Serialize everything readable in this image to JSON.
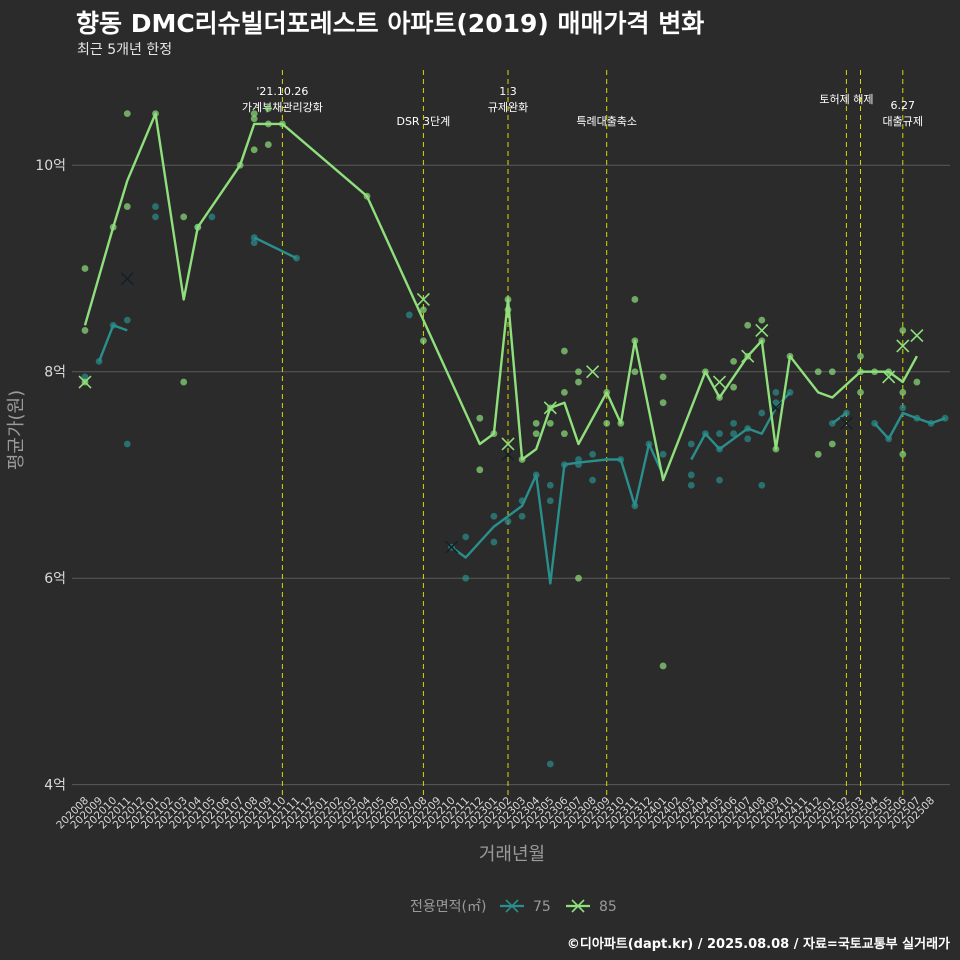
{
  "title": "향동 DMC리슈빌더포레스트 아파트(2019) 매매가격 변화",
  "subtitle": "최근 5개년 한정",
  "caption": "©디아파트(dapt.kr) / 2025.08.08 / 자료=국토교통부 실거래가",
  "colors": {
    "background": "#2b2b2b",
    "s75": "#2a8f8c",
    "s85": "#8fe07c",
    "event_line": "#d8d800",
    "grid": "#5a5a5a"
  },
  "chart_data": {
    "type": "line",
    "xlabel": "거래년월",
    "ylabel": "평균가(원)",
    "ylim": [
      3.9,
      11.0
    ],
    "y_ticks": [
      {
        "v": 4,
        "label": "4억"
      },
      {
        "v": 6,
        "label": "6억"
      },
      {
        "v": 8,
        "label": "8억"
      },
      {
        "v": 10,
        "label": "10억"
      }
    ],
    "categories": [
      "202008",
      "202009",
      "202010",
      "202011",
      "202012",
      "202101",
      "202102",
      "202103",
      "202104",
      "202105",
      "202106",
      "202107",
      "202108",
      "202109",
      "202110",
      "202111",
      "202112",
      "202201",
      "202202",
      "202203",
      "202204",
      "202205",
      "202206",
      "202207",
      "202208",
      "202209",
      "202210",
      "202211",
      "202212",
      "202301",
      "202302",
      "202303",
      "202304",
      "202305",
      "202306",
      "202307",
      "202308",
      "202309",
      "202310",
      "202311",
      "202312",
      "202401",
      "202402",
      "202403",
      "202404",
      "202405",
      "202406",
      "202407",
      "202408",
      "202409",
      "202410",
      "202411",
      "202412",
      "202501",
      "202502",
      "202503",
      "202504",
      "202505",
      "202506",
      "202507",
      "202508"
    ],
    "legend": {
      "title": "전용면적(㎡)",
      "entries": [
        "75",
        "85"
      ]
    },
    "events": [
      {
        "x": 14.0,
        "lines": [
          "'21.10.26",
          "가계부채관리강화"
        ],
        "row": 0
      },
      {
        "x": 24.0,
        "lines": [
          "DSR 3단계"
        ],
        "row": 1
      },
      {
        "x": 30.0,
        "lines": [
          "1.3",
          "규제완화"
        ],
        "row": 0
      },
      {
        "x": 37.0,
        "lines": [
          "특례대출축소"
        ],
        "row": 1
      },
      {
        "x": 54.0,
        "lines": [
          "토허제 해제"
        ],
        "row": 0
      },
      {
        "x": 55.0,
        "lines": [],
        "row": 0
      },
      {
        "x": 58.0,
        "lines": [
          "6.27",
          "대출규제"
        ],
        "row": 1
      }
    ],
    "series": [
      {
        "name": "75",
        "color": "#2a8f8c",
        "line_segments": [
          [
            [
              1,
              8.1
            ],
            [
              2,
              8.45
            ],
            [
              3,
              8.4
            ]
          ],
          [
            [
              12,
              9.3
            ],
            [
              15,
              9.1
            ]
          ],
          [
            [
              26,
              6.3
            ],
            [
              27,
              6.2
            ],
            [
              29,
              6.5
            ],
            [
              30,
              6.6
            ],
            [
              31,
              6.7
            ],
            [
              32,
              7.0
            ],
            [
              33,
              5.95
            ],
            [
              34,
              7.1
            ],
            [
              35,
              7.12
            ],
            [
              37,
              7.15
            ],
            [
              38,
              7.15
            ],
            [
              39,
              6.7
            ],
            [
              40,
              7.3
            ],
            [
              41,
              7.0
            ]
          ],
          [
            [
              43,
              7.15
            ],
            [
              44,
              7.4
            ],
            [
              45,
              7.25
            ],
            [
              46,
              7.35
            ],
            [
              47,
              7.45
            ],
            [
              48,
              7.4
            ],
            [
              49,
              7.65
            ],
            [
              50,
              7.8
            ]
          ],
          [
            [
              53,
              7.5
            ],
            [
              54,
              7.6
            ]
          ],
          [
            [
              56,
              7.5
            ],
            [
              57,
              7.35
            ],
            [
              58,
              7.6
            ],
            [
              59,
              7.55
            ],
            [
              60,
              7.5
            ],
            [
              61,
              7.55
            ]
          ]
        ],
        "points": [
          [
            0,
            7.95
          ],
          [
            1,
            8.1
          ],
          [
            2,
            8.45
          ],
          [
            3,
            8.5
          ],
          [
            3,
            7.3
          ],
          [
            5,
            9.6
          ],
          [
            5,
            9.5
          ],
          [
            8,
            9.4
          ],
          [
            9,
            9.5
          ],
          [
            12,
            9.25
          ],
          [
            12,
            9.3
          ],
          [
            15,
            9.1
          ],
          [
            23,
            8.55
          ],
          [
            26,
            6.3
          ],
          [
            27,
            6.4
          ],
          [
            27,
            6.0
          ],
          [
            29,
            6.6
          ],
          [
            29,
            6.35
          ],
          [
            30,
            6.55
          ],
          [
            31,
            6.6
          ],
          [
            31,
            6.75
          ],
          [
            32,
            7.0
          ],
          [
            33,
            6.9
          ],
          [
            33,
            6.75
          ],
          [
            33,
            4.2
          ],
          [
            34,
            7.1
          ],
          [
            35,
            7.15
          ],
          [
            35,
            7.1
          ],
          [
            36,
            6.95
          ],
          [
            36,
            7.2
          ],
          [
            38,
            7.15
          ],
          [
            39,
            6.7
          ],
          [
            40,
            7.3
          ],
          [
            41,
            7.2
          ],
          [
            43,
            6.9
          ],
          [
            43,
            7.0
          ],
          [
            43,
            7.3
          ],
          [
            44,
            7.4
          ],
          [
            45,
            6.95
          ],
          [
            45,
            7.25
          ],
          [
            45,
            7.4
          ],
          [
            46,
            7.5
          ],
          [
            46,
            7.4
          ],
          [
            47,
            7.35
          ],
          [
            47,
            7.45
          ],
          [
            48,
            6.9
          ],
          [
            48,
            7.6
          ],
          [
            49,
            7.8
          ],
          [
            49,
            7.7
          ],
          [
            50,
            7.8
          ],
          [
            53,
            7.5
          ],
          [
            54,
            7.6
          ],
          [
            56,
            7.5
          ],
          [
            57,
            7.35
          ],
          [
            58,
            7.65
          ],
          [
            59,
            7.55
          ],
          [
            60,
            7.5
          ],
          [
            61,
            7.55
          ]
        ],
        "x_markers": [
          [
            3,
            8.9
          ],
          [
            26,
            6.3
          ],
          [
            30,
            7.2
          ],
          [
            49,
            7.65
          ],
          [
            54,
            7.5
          ]
        ]
      },
      {
        "name": "85",
        "color": "#8fe07c",
        "line_segments": [
          [
            [
              0,
              8.45
            ],
            [
              2,
              9.4
            ],
            [
              3,
              9.85
            ],
            [
              5,
              10.5
            ],
            [
              7,
              8.7
            ],
            [
              8,
              9.4
            ],
            [
              11,
              10.0
            ],
            [
              12,
              10.4
            ],
            [
              14,
              10.4
            ],
            [
              20,
              9.7
            ],
            [
              24,
              8.5
            ],
            [
              28,
              7.3
            ],
            [
              29,
              7.4
            ],
            [
              30,
              8.7
            ],
            [
              31,
              7.15
            ],
            [
              32,
              7.25
            ],
            [
              33,
              7.65
            ],
            [
              34,
              7.7
            ],
            [
              35,
              7.3
            ],
            [
              37,
              7.8
            ],
            [
              38,
              7.5
            ],
            [
              39,
              8.3
            ],
            [
              41,
              6.95
            ],
            [
              44,
              8.0
            ],
            [
              45,
              7.75
            ],
            [
              46,
              7.95
            ],
            [
              47,
              8.15
            ],
            [
              48,
              8.3
            ],
            [
              49,
              7.25
            ],
            [
              50,
              8.15
            ],
            [
              52,
              7.8
            ],
            [
              53,
              7.75
            ],
            [
              55,
              8.0
            ],
            [
              57,
              8.0
            ],
            [
              58,
              7.9
            ],
            [
              59,
              8.15
            ]
          ]
        ],
        "points": [
          [
            0,
            9.0
          ],
          [
            0,
            8.4
          ],
          [
            0,
            7.9
          ],
          [
            2,
            9.4
          ],
          [
            3,
            9.6
          ],
          [
            3,
            10.5
          ],
          [
            5,
            10.5
          ],
          [
            7,
            9.5
          ],
          [
            7,
            7.9
          ],
          [
            8,
            9.4
          ],
          [
            11,
            10.0
          ],
          [
            12,
            10.5
          ],
          [
            12,
            10.45
          ],
          [
            12,
            10.15
          ],
          [
            13,
            10.55
          ],
          [
            13,
            10.4
          ],
          [
            13,
            10.2
          ],
          [
            14,
            10.4
          ],
          [
            20,
            9.7
          ],
          [
            24,
            8.6
          ],
          [
            24,
            8.3
          ],
          [
            28,
            7.55
          ],
          [
            28,
            7.05
          ],
          [
            29,
            7.4
          ],
          [
            30,
            8.7
          ],
          [
            30,
            8.6
          ],
          [
            31,
            7.15
          ],
          [
            32,
            7.5
          ],
          [
            32,
            7.4
          ],
          [
            33,
            7.65
          ],
          [
            33,
            7.5
          ],
          [
            34,
            8.2
          ],
          [
            34,
            7.8
          ],
          [
            34,
            7.4
          ],
          [
            35,
            8.0
          ],
          [
            35,
            7.9
          ],
          [
            35,
            6.0
          ],
          [
            37,
            7.8
          ],
          [
            37,
            7.5
          ],
          [
            38,
            7.5
          ],
          [
            39,
            8.7
          ],
          [
            39,
            8.3
          ],
          [
            39,
            8.0
          ],
          [
            41,
            7.95
          ],
          [
            41,
            7.7
          ],
          [
            41,
            5.15
          ],
          [
            44,
            8.0
          ],
          [
            45,
            7.75
          ],
          [
            46,
            8.1
          ],
          [
            46,
            7.85
          ],
          [
            47,
            8.45
          ],
          [
            47,
            8.15
          ],
          [
            48,
            8.5
          ],
          [
            48,
            8.3
          ],
          [
            49,
            7.25
          ],
          [
            50,
            8.15
          ],
          [
            52,
            8.0
          ],
          [
            52,
            7.2
          ],
          [
            53,
            8.0
          ],
          [
            53,
            7.3
          ],
          [
            55,
            8.15
          ],
          [
            55,
            8.0
          ],
          [
            55,
            7.8
          ],
          [
            56,
            8.0
          ],
          [
            57,
            8.0
          ],
          [
            58,
            8.4
          ],
          [
            58,
            7.8
          ],
          [
            58,
            7.2
          ],
          [
            59,
            7.9
          ]
        ],
        "x_markers": [
          [
            0,
            7.9
          ],
          [
            24,
            8.7
          ],
          [
            30,
            7.3
          ],
          [
            33,
            7.65
          ],
          [
            36,
            8.0
          ],
          [
            45,
            7.9
          ],
          [
            47,
            8.15
          ],
          [
            48,
            8.4
          ],
          [
            57,
            7.95
          ],
          [
            58,
            8.25
          ],
          [
            59,
            8.35
          ]
        ]
      }
    ]
  }
}
